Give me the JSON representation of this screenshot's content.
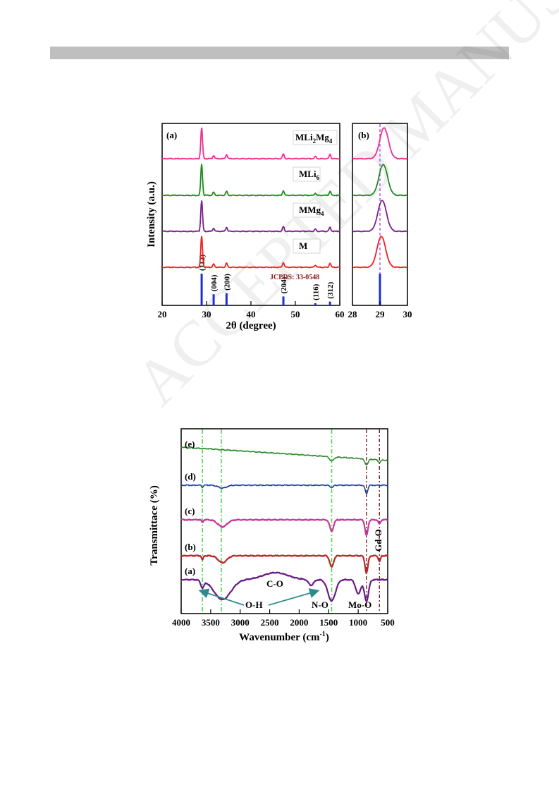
{
  "watermark": "ACCEPTED MANUSCRIPT",
  "chart_data": [
    {
      "type": "line",
      "panel": "(a)",
      "xlabel": "2θ (degree)",
      "ylabel": "Intensity (a.u.)",
      "xlim": [
        20,
        60
      ],
      "xticks": [
        20,
        30,
        40,
        50,
        60
      ],
      "reference": "JCPDS: 33-0548",
      "reference_peaks": [
        {
          "hkl": "(112)",
          "x": 28.9,
          "rel": 1.0
        },
        {
          "hkl": "(004)",
          "x": 31.6,
          "rel": 0.35
        },
        {
          "hkl": "(200)",
          "x": 34.5,
          "rel": 0.38
        },
        {
          "hkl": "(204)",
          "x": 47.3,
          "rel": 0.28
        },
        {
          "hkl": "(116)",
          "x": 54.5,
          "rel": 0.07
        },
        {
          "hkl": "(312)",
          "x": 57.8,
          "rel": 0.12
        }
      ],
      "series": [
        {
          "name": "MLi2Mg4",
          "label_main": "MLi",
          "label_sub1": "2",
          "label_mid": "Mg",
          "label_sub2": "4",
          "color": "#ee2e92"
        },
        {
          "name": "MLi6",
          "label_main": "MLi",
          "label_sub1": "6",
          "color": "#1e8a1e"
        },
        {
          "name": "MMg4",
          "label_main": "MMg",
          "label_sub1": "4",
          "color": "#7b1f8c"
        },
        {
          "name": "M",
          "label_main": "M",
          "color": "#ee2020"
        }
      ]
    },
    {
      "type": "line",
      "panel": "(b)",
      "xlim": [
        28,
        30
      ],
      "xticks": [
        28,
        29,
        30
      ],
      "peak_position": 29.0,
      "dashed_line_x": 29.0
    },
    {
      "type": "line",
      "xlabel_main": "Wavenumber (cm",
      "xlabel_sup": "-1",
      "xlabel_end": ")",
      "ylabel": "Transmittace (%)",
      "xlim": [
        4000,
        500
      ],
      "xticks": [
        4000,
        3500,
        3000,
        2500,
        2000,
        1500,
        1000,
        500
      ],
      "series": [
        {
          "name": "(e)",
          "color": "#2e8b2e"
        },
        {
          "name": "(d)",
          "color": "#1f3fa8"
        },
        {
          "name": "(c)",
          "color": "#c8379a"
        },
        {
          "name": "(b)",
          "color": "#b82828"
        },
        {
          "name": "(a)",
          "color": "#6a1b86"
        }
      ],
      "green_dashed_lines": [
        3640,
        3320,
        1450
      ],
      "brown_dashed_lines": [
        860,
        640
      ],
      "annotations": [
        "C-O",
        "O-H",
        "N-O",
        "Mo-O",
        "Gd-O"
      ]
    }
  ]
}
